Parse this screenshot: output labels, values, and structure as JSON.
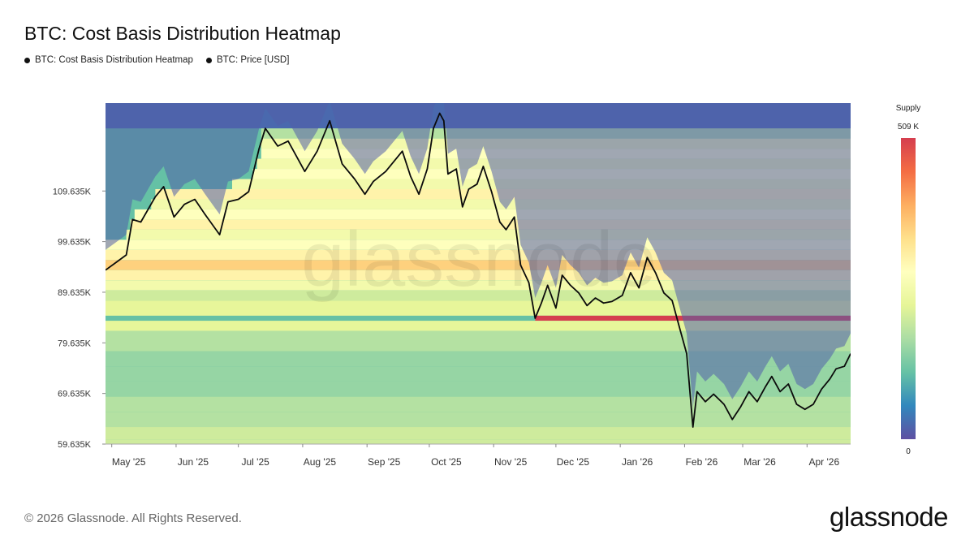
{
  "chart_data": {
    "type": "heatmap",
    "title": "BTC: Cost Basis Distribution Heatmap",
    "legend": [
      {
        "label": "BTC: Cost Basis Distribution Heatmap",
        "color": "#111111"
      },
      {
        "label": "BTC: Price [USD]",
        "color": "#111111"
      }
    ],
    "ylim": [
      59635,
      127000
    ],
    "yticks": [
      59635,
      69635,
      79635,
      89635,
      99635,
      109635
    ],
    "ytick_labels": [
      "59.635K",
      "69.635K",
      "79.635K",
      "89.635K",
      "99.635K",
      "109.635K"
    ],
    "xlim": [
      "2025-04-28",
      "2026-04-22"
    ],
    "xticks": [
      {
        "date": "2025-05-01",
        "label": "May '25"
      },
      {
        "date": "2025-06-01",
        "label": "Jun '25"
      },
      {
        "date": "2025-07-01",
        "label": "Jul '25"
      },
      {
        "date": "2025-08-01",
        "label": "Aug '25"
      },
      {
        "date": "2025-09-01",
        "label": "Sep '25"
      },
      {
        "date": "2025-10-01",
        "label": "Oct '25"
      },
      {
        "date": "2025-11-01",
        "label": "Nov '25"
      },
      {
        "date": "2025-12-01",
        "label": "Dec '25"
      },
      {
        "date": "2026-01-01",
        "label": "Jan '26"
      },
      {
        "date": "2026-02-01",
        "label": "Feb '26"
      },
      {
        "date": "2026-03-01",
        "label": "Mar '26"
      },
      {
        "date": "2026-04-01",
        "label": "Apr '26"
      }
    ],
    "colorbar": {
      "title": "Supply",
      "max_label": "509 K",
      "min_label": "0",
      "stops": [
        "#d53e4f",
        "#f46d43",
        "#fdae61",
        "#fee08b",
        "#ffffbf",
        "#e6f598",
        "#abdda4",
        "#66c2a5",
        "#3288bd",
        "#5e4fa2"
      ]
    },
    "price_series": {
      "name": "BTC: Price [USD]",
      "points": [
        [
          "2025-04-28",
          94000
        ],
        [
          "2025-05-03",
          95500
        ],
        [
          "2025-05-08",
          97000
        ],
        [
          "2025-05-11",
          104000
        ],
        [
          "2025-05-15",
          103500
        ],
        [
          "2025-05-22",
          108500
        ],
        [
          "2025-05-26",
          110500
        ],
        [
          "2025-05-31",
          104500
        ],
        [
          "2025-06-05",
          107000
        ],
        [
          "2025-06-10",
          108000
        ],
        [
          "2025-06-15",
          105000
        ],
        [
          "2025-06-22",
          101000
        ],
        [
          "2025-06-26",
          107500
        ],
        [
          "2025-07-01",
          108000
        ],
        [
          "2025-07-06",
          109500
        ],
        [
          "2025-07-11",
          118000
        ],
        [
          "2025-07-14",
          122000
        ],
        [
          "2025-07-20",
          118500
        ],
        [
          "2025-07-25",
          119500
        ],
        [
          "2025-08-02",
          113500
        ],
        [
          "2025-08-08",
          117500
        ],
        [
          "2025-08-14",
          123500
        ],
        [
          "2025-08-20",
          115000
        ],
        [
          "2025-08-26",
          112000
        ],
        [
          "2025-08-31",
          109000
        ],
        [
          "2025-09-04",
          111500
        ],
        [
          "2025-09-10",
          113500
        ],
        [
          "2025-09-15",
          116000
        ],
        [
          "2025-09-18",
          117500
        ],
        [
          "2025-09-22",
          112500
        ],
        [
          "2025-09-26",
          109000
        ],
        [
          "2025-09-30",
          114000
        ],
        [
          "2025-10-03",
          122000
        ],
        [
          "2025-10-06",
          125000
        ],
        [
          "2025-10-08",
          123500
        ],
        [
          "2025-10-10",
          113000
        ],
        [
          "2025-10-14",
          114000
        ],
        [
          "2025-10-17",
          106500
        ],
        [
          "2025-10-20",
          110000
        ],
        [
          "2025-10-24",
          111000
        ],
        [
          "2025-10-27",
          114500
        ],
        [
          "2025-10-31",
          109500
        ],
        [
          "2025-11-04",
          103500
        ],
        [
          "2025-11-07",
          102000
        ],
        [
          "2025-11-11",
          104500
        ],
        [
          "2025-11-14",
          95000
        ],
        [
          "2025-11-18",
          91500
        ],
        [
          "2025-11-21",
          84500
        ],
        [
          "2025-11-24",
          87500
        ],
        [
          "2025-11-27",
          91000
        ],
        [
          "2025-12-01",
          86500
        ],
        [
          "2025-12-04",
          93000
        ],
        [
          "2025-12-08",
          91000
        ],
        [
          "2025-12-12",
          89500
        ],
        [
          "2025-12-16",
          87000
        ],
        [
          "2025-12-20",
          88500
        ],
        [
          "2025-12-24",
          87500
        ],
        [
          "2025-12-28",
          87800
        ],
        [
          "2026-01-02",
          89000
        ],
        [
          "2026-01-06",
          93500
        ],
        [
          "2026-01-10",
          90500
        ],
        [
          "2026-01-14",
          96500
        ],
        [
          "2026-01-18",
          93500
        ],
        [
          "2026-01-22",
          89500
        ],
        [
          "2026-01-26",
          88000
        ],
        [
          "2026-01-30",
          82000
        ],
        [
          "2026-02-02",
          77500
        ],
        [
          "2026-02-05",
          63000
        ],
        [
          "2026-02-07",
          70000
        ],
        [
          "2026-02-11",
          68000
        ],
        [
          "2026-02-15",
          69500
        ],
        [
          "2026-02-20",
          67500
        ],
        [
          "2026-02-24",
          64500
        ],
        [
          "2026-02-28",
          67000
        ],
        [
          "2026-03-04",
          70000
        ],
        [
          "2026-03-08",
          68000
        ],
        [
          "2026-03-12",
          71000
        ],
        [
          "2026-03-15",
          73000
        ],
        [
          "2026-03-19",
          70000
        ],
        [
          "2026-03-23",
          71500
        ],
        [
          "2026-03-27",
          67500
        ],
        [
          "2026-03-31",
          66500
        ],
        [
          "2026-04-04",
          67500
        ],
        [
          "2026-04-08",
          70500
        ],
        [
          "2026-04-12",
          72500
        ],
        [
          "2026-04-15",
          74500
        ],
        [
          "2026-04-19",
          75000
        ],
        [
          "2026-04-22",
          77500
        ]
      ]
    },
    "cost_basis_bands": [
      {
        "price": 127000,
        "start": "2025-04-28",
        "level": 0.05
      },
      {
        "price": 122000,
        "start": "2025-07-12",
        "level": 0.35
      },
      {
        "price": 120000,
        "start": "2025-07-12",
        "level": 0.5
      },
      {
        "price": 118000,
        "start": "2025-07-12",
        "level": 0.55
      },
      {
        "price": 116000,
        "start": "2025-07-10",
        "level": 0.5
      },
      {
        "price": 114000,
        "start": "2025-07-08",
        "level": 0.55
      },
      {
        "price": 112000,
        "start": "2025-06-28",
        "level": 0.5
      },
      {
        "price": 110000,
        "start": "2025-05-22",
        "level": 0.6
      },
      {
        "price": 108000,
        "start": "2025-05-20",
        "level": 0.5
      },
      {
        "price": 106000,
        "start": "2025-05-12",
        "level": 0.55
      },
      {
        "price": 104000,
        "start": "2025-05-10",
        "level": 0.6
      },
      {
        "price": 102000,
        "start": "2025-05-08",
        "level": 0.5
      },
      {
        "price": 100000,
        "start": "2025-04-28",
        "level": 0.55
      },
      {
        "price": 98000,
        "start": "2025-04-28",
        "level": 0.6
      },
      {
        "price": 96000,
        "start": "2025-04-28",
        "level": 0.7
      },
      {
        "price": 94000,
        "start": "2025-04-28",
        "level": 0.6
      },
      {
        "price": 92000,
        "start": "2025-04-28",
        "level": 0.5
      },
      {
        "price": 90000,
        "start": "2025-04-28",
        "level": 0.4
      },
      {
        "price": 88000,
        "start": "2025-04-28",
        "level": 0.45
      },
      {
        "price": 85000,
        "start": "2025-11-21",
        "level": 1.0
      },
      {
        "price": 84000,
        "start": "2025-04-28",
        "level": 0.45
      },
      {
        "price": 82000,
        "start": "2025-04-28",
        "level": 0.35
      },
      {
        "price": 78000,
        "start": "2025-04-28",
        "level": 0.3
      },
      {
        "price": 75000,
        "start": "2025-04-28",
        "level": 0.3
      },
      {
        "price": 72000,
        "start": "2025-04-28",
        "level": 0.3
      },
      {
        "price": 69000,
        "start": "2025-04-28",
        "level": 0.35
      },
      {
        "price": 66000,
        "start": "2025-04-28",
        "level": 0.35
      },
      {
        "price": 63000,
        "start": "2025-04-28",
        "level": 0.4
      },
      {
        "price": 60500,
        "start": "2025-04-28",
        "level": 0.4
      }
    ]
  },
  "footer": {
    "copyright": "© 2026 Glassnode. All Rights Reserved.",
    "brand": "glassnode"
  }
}
